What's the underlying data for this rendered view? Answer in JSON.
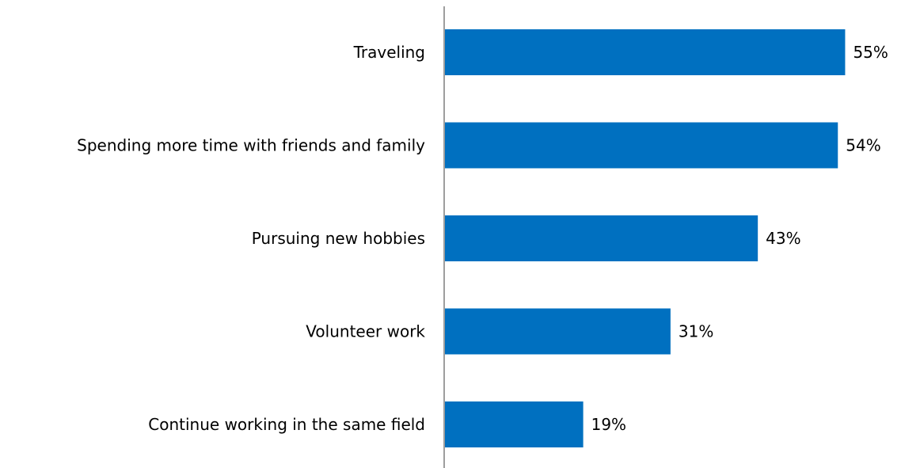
{
  "chart_data": {
    "type": "bar",
    "orientation": "horizontal",
    "categories": [
      "Traveling",
      "Spending more time with friends and family",
      "Pursuing new hobbies",
      "Volunteer work",
      "Continue working in the same field"
    ],
    "values": [
      55,
      54,
      43,
      31,
      19
    ],
    "value_labels": [
      "55%",
      "54%",
      "43%",
      "31%",
      "19%"
    ],
    "unit": "%",
    "xlim": [
      0,
      60
    ],
    "grid": false,
    "legend": "none",
    "bar_color": "#0070C0",
    "axis_color": "#7F7F7F"
  }
}
